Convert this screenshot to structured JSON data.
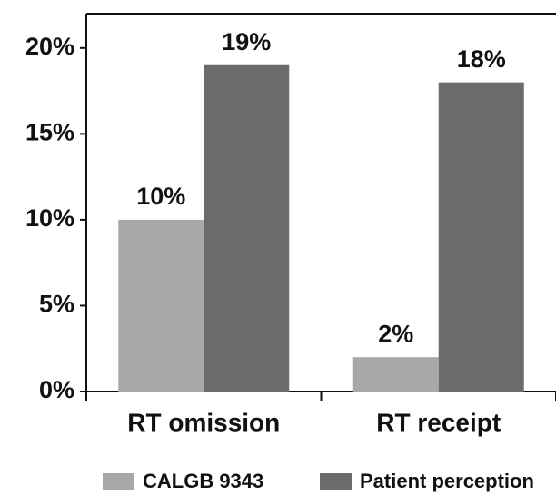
{
  "chart_data": {
    "type": "bar",
    "categories": [
      "RT omission",
      "RT receipt"
    ],
    "series": [
      {
        "name": "CALGB 9343",
        "color": "#a8a8a8",
        "values": [
          10,
          2
        ],
        "value_labels": [
          "10%",
          "2%"
        ]
      },
      {
        "name": "Patient perception",
        "color": "#6b6b6b",
        "values": [
          19,
          18
        ],
        "value_labels": [
          "19%",
          "18%"
        ]
      }
    ],
    "ylim": [
      0,
      22
    ],
    "yticks": [
      {
        "value": 0,
        "label": "0%"
      },
      {
        "value": 5,
        "label": "5%"
      },
      {
        "value": 10,
        "label": "10%"
      },
      {
        "value": 15,
        "label": "15%"
      },
      {
        "value": 20,
        "label": "20%"
      }
    ],
    "legend": "bottom"
  }
}
